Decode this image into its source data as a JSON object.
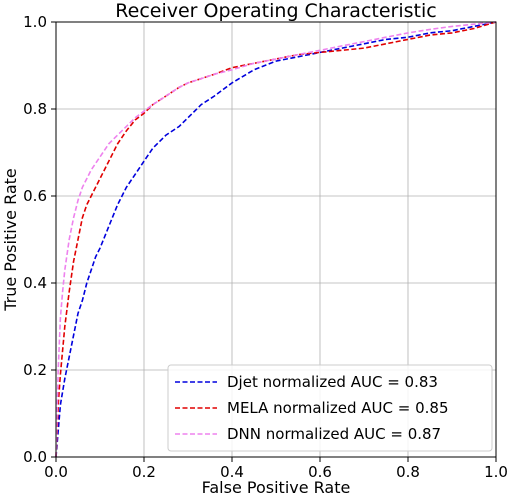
{
  "chart_data": {
    "type": "line",
    "title": "Receiver Operating Characteristic",
    "xlabel": "False Positive Rate",
    "ylabel": "True Positive Rate",
    "xlim": [
      0.0,
      1.0
    ],
    "ylim": [
      0.0,
      1.0
    ],
    "grid": true,
    "legend_position": "lower-right",
    "x_ticks": [
      "0.0",
      "0.2",
      "0.4",
      "0.6",
      "0.8",
      "1.0"
    ],
    "y_ticks": [
      "0.0",
      "0.2",
      "0.4",
      "0.6",
      "0.8",
      "1.0"
    ],
    "series": [
      {
        "name": "Djet normalized AUC = 0.83",
        "color": "#0000dd",
        "style": "dashed",
        "x": [
          0.0,
          0.005,
          0.01,
          0.02,
          0.03,
          0.04,
          0.05,
          0.06,
          0.07,
          0.08,
          0.09,
          0.1,
          0.12,
          0.14,
          0.16,
          0.18,
          0.2,
          0.22,
          0.25,
          0.28,
          0.3,
          0.33,
          0.36,
          0.4,
          0.45,
          0.5,
          0.55,
          0.6,
          0.65,
          0.7,
          0.75,
          0.8,
          0.85,
          0.9,
          0.95,
          1.0
        ],
        "y": [
          0.0,
          0.06,
          0.12,
          0.18,
          0.23,
          0.28,
          0.33,
          0.36,
          0.4,
          0.43,
          0.46,
          0.48,
          0.53,
          0.58,
          0.62,
          0.65,
          0.68,
          0.71,
          0.74,
          0.76,
          0.78,
          0.81,
          0.83,
          0.86,
          0.89,
          0.91,
          0.92,
          0.93,
          0.94,
          0.95,
          0.96,
          0.965,
          0.975,
          0.98,
          0.99,
          1.0
        ]
      },
      {
        "name": "MELA normalized AUC = 0.85",
        "color": "#e00000",
        "style": "dashed",
        "x": [
          0.0,
          0.005,
          0.01,
          0.02,
          0.03,
          0.04,
          0.05,
          0.06,
          0.07,
          0.08,
          0.1,
          0.12,
          0.14,
          0.16,
          0.18,
          0.2,
          0.22,
          0.25,
          0.28,
          0.3,
          0.33,
          0.36,
          0.4,
          0.45,
          0.5,
          0.55,
          0.6,
          0.65,
          0.7,
          0.75,
          0.8,
          0.85,
          0.9,
          0.95,
          1.0
        ],
        "y": [
          0.0,
          0.12,
          0.19,
          0.3,
          0.38,
          0.45,
          0.5,
          0.55,
          0.58,
          0.6,
          0.64,
          0.68,
          0.72,
          0.75,
          0.775,
          0.79,
          0.81,
          0.83,
          0.85,
          0.86,
          0.87,
          0.88,
          0.895,
          0.905,
          0.915,
          0.925,
          0.93,
          0.935,
          0.94,
          0.95,
          0.96,
          0.97,
          0.975,
          0.985,
          1.0
        ]
      },
      {
        "name": "DNN normalized AUC = 0.87",
        "color": "#ee82ee",
        "style": "dashed",
        "x": [
          0.0,
          0.005,
          0.01,
          0.015,
          0.02,
          0.03,
          0.04,
          0.05,
          0.06,
          0.07,
          0.08,
          0.1,
          0.12,
          0.14,
          0.16,
          0.18,
          0.2,
          0.22,
          0.25,
          0.28,
          0.3,
          0.33,
          0.36,
          0.4,
          0.45,
          0.5,
          0.55,
          0.6,
          0.65,
          0.7,
          0.75,
          0.8,
          0.85,
          0.9,
          0.95,
          1.0
        ],
        "y": [
          0.0,
          0.2,
          0.32,
          0.38,
          0.43,
          0.5,
          0.55,
          0.59,
          0.62,
          0.64,
          0.66,
          0.69,
          0.72,
          0.74,
          0.76,
          0.78,
          0.795,
          0.81,
          0.83,
          0.85,
          0.86,
          0.87,
          0.88,
          0.89,
          0.905,
          0.915,
          0.925,
          0.935,
          0.945,
          0.955,
          0.965,
          0.975,
          0.983,
          0.99,
          0.995,
          1.0
        ]
      }
    ]
  }
}
